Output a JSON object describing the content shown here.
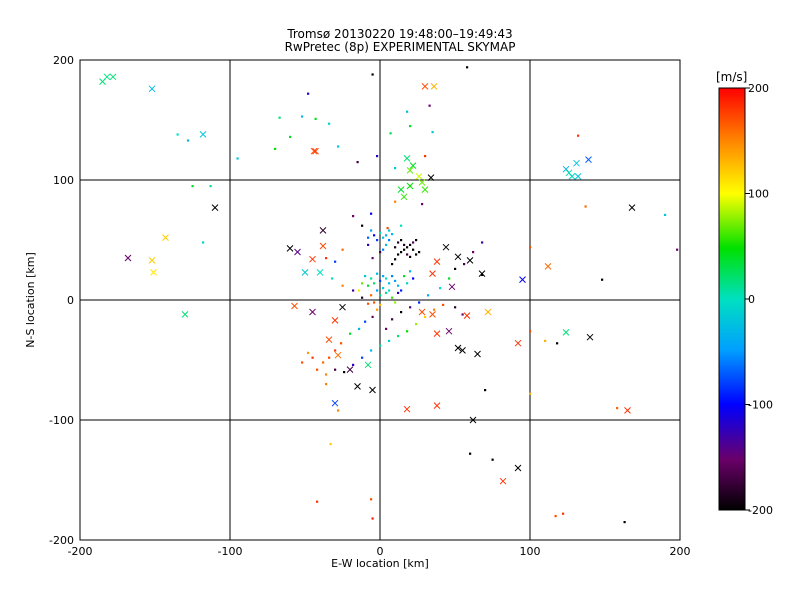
{
  "title_line1": "Tromsø 20130220 19:48:00–19:49:43",
  "title_line2": "RwPretec (8p) EXPERIMENTAL SKYMAP",
  "colorbar": {
    "unit": "[m/s]",
    "ticks": [
      "200",
      "100",
      "0",
      "-100",
      "-200"
    ],
    "range": [
      -200,
      200
    ]
  },
  "chart_data": {
    "type": "scatter",
    "title": "Tromsø 20130220 19:48:00–19:49:43 RwPretec (8p) EXPERIMENTAL SKYMAP",
    "xlabel": "E-W location [km]",
    "ylabel": "N-S location [km]",
    "xlim": [
      -200,
      200
    ],
    "ylim": [
      -200,
      200
    ],
    "xticks": [
      "-200",
      "-100",
      "0",
      "100",
      "200"
    ],
    "yticks": [
      "-200",
      "-100",
      "0",
      "100",
      "200"
    ],
    "grid": true,
    "color_variable": "velocity [m/s]",
    "crosses": [
      [
        -185,
        182,
        20
      ],
      [
        -182,
        186,
        15
      ],
      [
        -178,
        186,
        20
      ],
      [
        -152,
        176,
        -30
      ],
      [
        -118,
        138,
        -20
      ],
      [
        -110,
        77,
        -200
      ],
      [
        -168,
        35,
        -150
      ],
      [
        -143,
        52,
        120
      ],
      [
        -152,
        33,
        120
      ],
      [
        -151,
        23,
        110
      ],
      [
        -130,
        -12,
        20
      ],
      [
        -60,
        43,
        -200
      ],
      [
        -55,
        40,
        -140
      ],
      [
        -50,
        23,
        -20
      ],
      [
        -45,
        34,
        180
      ],
      [
        -40,
        23,
        0
      ],
      [
        -38,
        58,
        -180
      ],
      [
        -38,
        45,
        170
      ],
      [
        -44,
        124,
        170
      ],
      [
        -43,
        124,
        180
      ],
      [
        -25,
        -6,
        -200
      ],
      [
        -30,
        -17,
        180
      ],
      [
        -34,
        -33,
        170
      ],
      [
        -28,
        -46,
        160
      ],
      [
        -20,
        -58,
        -170
      ],
      [
        -15,
        -72,
        -200
      ],
      [
        -5,
        -75,
        -200
      ],
      [
        -30,
        -86,
        -80
      ],
      [
        -8,
        -54,
        20
      ],
      [
        -57,
        -5,
        170
      ],
      [
        38,
        -88,
        180
      ],
      [
        18,
        -91,
        180
      ],
      [
        62,
        -100,
        -200
      ],
      [
        92,
        -140,
        -200
      ],
      [
        82,
        -151,
        180
      ],
      [
        30,
        178,
        170
      ],
      [
        18,
        118,
        20
      ],
      [
        22,
        112,
        40
      ],
      [
        20,
        108,
        70
      ],
      [
        26,
        103,
        90
      ],
      [
        28,
        98,
        70
      ],
      [
        30,
        92,
        60
      ],
      [
        20,
        95,
        50
      ],
      [
        14,
        92,
        40
      ],
      [
        16,
        86,
        60
      ],
      [
        36,
        178,
        130
      ],
      [
        34,
        102,
        -200
      ],
      [
        35,
        22,
        180
      ],
      [
        38,
        32,
        180
      ],
      [
        44,
        44,
        -200
      ],
      [
        52,
        36,
        -200
      ],
      [
        60,
        33,
        -200
      ],
      [
        68,
        22,
        -200
      ],
      [
        48,
        11,
        -150
      ],
      [
        46,
        -26,
        -150
      ],
      [
        52,
        -40,
        -200
      ],
      [
        55,
        -42,
        -200
      ],
      [
        35,
        -12,
        170
      ],
      [
        38,
        -28,
        180
      ],
      [
        58,
        -13,
        180
      ],
      [
        65,
        -45,
        -200
      ],
      [
        72,
        -10,
        130
      ],
      [
        92,
        -36,
        180
      ],
      [
        95,
        17,
        -100
      ],
      [
        112,
        28,
        160
      ],
      [
        124,
        -27,
        20
      ],
      [
        126,
        106,
        10
      ],
      [
        128,
        103,
        -10
      ],
      [
        131,
        114,
        -20
      ],
      [
        132,
        103,
        -20
      ],
      [
        139,
        117,
        -70
      ],
      [
        124,
        109,
        -30
      ],
      [
        140,
        -31,
        -200
      ],
      [
        168,
        77,
        -200
      ],
      [
        165,
        -92,
        180
      ],
      [
        28,
        -10,
        170
      ],
      [
        -45,
        -10,
        -150
      ]
    ],
    "points": [
      [
        -67,
        152,
        20
      ],
      [
        -43,
        151,
        40
      ],
      [
        -48,
        172,
        -120
      ],
      [
        -52,
        153,
        -30
      ],
      [
        -34,
        147,
        -10
      ],
      [
        -60,
        136,
        40
      ],
      [
        -70,
        126,
        50
      ],
      [
        -28,
        128,
        -20
      ],
      [
        -135,
        138,
        0
      ],
      [
        -128,
        133,
        -30
      ],
      [
        -95,
        118,
        -20
      ],
      [
        -118,
        48,
        -10
      ],
      [
        -125,
        95,
        40
      ],
      [
        -113,
        95,
        10
      ],
      [
        -5,
        188,
        -200
      ],
      [
        58,
        194,
        -200
      ],
      [
        33,
        162,
        -150
      ],
      [
        18,
        157,
        -30
      ],
      [
        -2,
        120,
        -120
      ],
      [
        10,
        110,
        -20
      ],
      [
        20,
        145,
        40
      ],
      [
        7,
        139,
        30
      ],
      [
        30,
        120,
        180
      ],
      [
        35,
        140,
        -20
      ],
      [
        -15,
        115,
        -170
      ],
      [
        28,
        80,
        -150
      ],
      [
        10,
        82,
        150
      ],
      [
        5,
        60,
        170
      ],
      [
        14,
        62,
        0
      ],
      [
        -12,
        62,
        -200
      ],
      [
        -18,
        70,
        -150
      ],
      [
        -6,
        72,
        -100
      ],
      [
        0,
        40,
        -170
      ],
      [
        -5,
        35,
        -150
      ],
      [
        -8,
        46,
        -120
      ],
      [
        -25,
        42,
        160
      ],
      [
        -30,
        32,
        -80
      ],
      [
        -36,
        35,
        180
      ],
      [
        -32,
        18,
        0
      ],
      [
        -25,
        12,
        150
      ],
      [
        -18,
        8,
        -130
      ],
      [
        -12,
        2,
        -180
      ],
      [
        -8,
        -3,
        170
      ],
      [
        -2,
        -8,
        140
      ],
      [
        -5,
        -14,
        -150
      ],
      [
        -10,
        -18,
        -80
      ],
      [
        -14,
        -24,
        -30
      ],
      [
        -20,
        -28,
        40
      ],
      [
        -26,
        -36,
        170
      ],
      [
        -30,
        -42,
        180
      ],
      [
        -34,
        -48,
        170
      ],
      [
        -38,
        -52,
        160
      ],
      [
        -42,
        -58,
        170
      ],
      [
        -45,
        -48,
        180
      ],
      [
        -48,
        -44,
        140
      ],
      [
        -52,
        -52,
        170
      ],
      [
        -36,
        -62,
        150
      ],
      [
        -30,
        -58,
        -170
      ],
      [
        -24,
        -60,
        -200
      ],
      [
        -18,
        -54,
        -120
      ],
      [
        -12,
        -48,
        -80
      ],
      [
        -6,
        -42,
        -30
      ],
      [
        0,
        -38,
        10
      ],
      [
        6,
        -34,
        -10
      ],
      [
        12,
        -30,
        20
      ],
      [
        18,
        -26,
        50
      ],
      [
        24,
        -20,
        80
      ],
      [
        30,
        -14,
        120
      ],
      [
        36,
        -8,
        150
      ],
      [
        42,
        -4,
        170
      ],
      [
        50,
        -6,
        -180
      ],
      [
        55,
        -12,
        -150
      ],
      [
        4,
        -24,
        -150
      ],
      [
        8,
        -16,
        -170
      ],
      [
        14,
        -10,
        -200
      ],
      [
        20,
        -6,
        -140
      ],
      [
        26,
        -2,
        -90
      ],
      [
        32,
        4,
        -40
      ],
      [
        40,
        10,
        0
      ],
      [
        46,
        18,
        40
      ],
      [
        50,
        26,
        -200
      ],
      [
        56,
        30,
        -170
      ],
      [
        62,
        40,
        -150
      ],
      [
        68,
        48,
        -130
      ],
      [
        8,
        30,
        -200
      ],
      [
        10,
        34,
        -200
      ],
      [
        12,
        38,
        -200
      ],
      [
        14,
        40,
        -200
      ],
      [
        16,
        42,
        -200
      ],
      [
        18,
        44,
        -200
      ],
      [
        20,
        46,
        -200
      ],
      [
        22,
        42,
        -200
      ],
      [
        24,
        38,
        -200
      ],
      [
        26,
        40,
        -200
      ],
      [
        10,
        44,
        -190
      ],
      [
        12,
        48,
        -180
      ],
      [
        14,
        50,
        -200
      ],
      [
        16,
        46,
        -180
      ],
      [
        18,
        38,
        -170
      ],
      [
        20,
        36,
        -200
      ],
      [
        22,
        48,
        -160
      ],
      [
        24,
        50,
        -200
      ],
      [
        6,
        50,
        -60
      ],
      [
        4,
        54,
        -40
      ],
      [
        2,
        52,
        -20
      ],
      [
        0,
        56,
        0
      ],
      [
        -2,
        50,
        -80
      ],
      [
        -4,
        54,
        -100
      ],
      [
        6,
        58,
        -20
      ],
      [
        8,
        55,
        -30
      ],
      [
        -6,
        58,
        -50
      ],
      [
        -8,
        52,
        -70
      ],
      [
        4,
        46,
        -30
      ],
      [
        2,
        42,
        -60
      ],
      [
        6,
        14,
        -20
      ],
      [
        4,
        18,
        0
      ],
      [
        2,
        20,
        -40
      ],
      [
        0,
        16,
        -80
      ],
      [
        -2,
        22,
        -30
      ],
      [
        -4,
        14,
        20
      ],
      [
        8,
        20,
        -60
      ],
      [
        10,
        16,
        -50
      ],
      [
        12,
        12,
        -30
      ],
      [
        -6,
        18,
        10
      ],
      [
        -8,
        12,
        40
      ],
      [
        -10,
        20,
        -20
      ],
      [
        6,
        8,
        0
      ],
      [
        4,
        6,
        10
      ],
      [
        2,
        10,
        -10
      ],
      [
        0,
        4,
        20
      ],
      [
        -2,
        8,
        -50
      ],
      [
        14,
        8,
        -90
      ],
      [
        8,
        2,
        60
      ],
      [
        10,
        -2,
        80
      ],
      [
        12,
        6,
        -120
      ],
      [
        -4,
        -2,
        170
      ],
      [
        -6,
        4,
        160
      ],
      [
        0,
        -4,
        130
      ],
      [
        16,
        20,
        40
      ],
      [
        18,
        14,
        -10
      ],
      [
        -12,
        14,
        70
      ],
      [
        -14,
        8,
        110
      ],
      [
        20,
        24,
        -40
      ],
      [
        22,
        18,
        -100
      ],
      [
        -36,
        -70,
        150
      ],
      [
        -28,
        -92,
        150
      ],
      [
        -33,
        -120,
        120
      ],
      [
        -42,
        -168,
        180
      ],
      [
        -5,
        -182,
        190
      ],
      [
        -6,
        -166,
        170
      ],
      [
        60,
        -128,
        -200
      ],
      [
        70,
        -75,
        -200
      ],
      [
        75,
        -133,
        -200
      ],
      [
        68,
        21,
        -200
      ],
      [
        100,
        44,
        170
      ],
      [
        100,
        -78,
        130
      ],
      [
        110,
        -34,
        130
      ],
      [
        118,
        -36,
        -200
      ],
      [
        122,
        -178,
        180
      ],
      [
        117,
        -180,
        170
      ],
      [
        163,
        -185,
        -200
      ],
      [
        158,
        -90,
        160
      ],
      [
        148,
        17,
        -200
      ],
      [
        137,
        78,
        160
      ],
      [
        132,
        137,
        180
      ],
      [
        190,
        71,
        -20
      ],
      [
        198,
        42,
        -150
      ],
      [
        100,
        -26,
        170
      ]
    ]
  }
}
